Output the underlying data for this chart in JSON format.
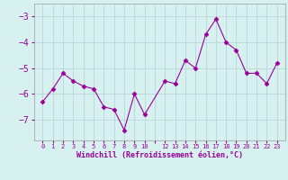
{
  "x": [
    0,
    1,
    2,
    3,
    4,
    5,
    6,
    7,
    8,
    9,
    10,
    12,
    13,
    14,
    15,
    16,
    17,
    18,
    19,
    20,
    21,
    22,
    23
  ],
  "y": [
    -6.3,
    -5.8,
    -5.2,
    -5.5,
    -5.7,
    -5.8,
    -6.5,
    -6.6,
    -7.4,
    -6.0,
    -6.8,
    -5.5,
    -5.6,
    -4.7,
    -5.0,
    -3.7,
    -3.1,
    -4.0,
    -4.3,
    -5.2,
    -5.2,
    -5.6,
    -4.8
  ],
  "line_color": "#990099",
  "marker": "D",
  "marker_size": 2.5,
  "bg_color": "#d7f0f0",
  "grid_color": "#b8d8d8",
  "xlabel": "Windchill (Refroidissement éolien,°C)",
  "xlabel_color": "#990099",
  "tick_color": "#990099",
  "ylim": [
    -7.8,
    -2.5
  ],
  "yticks": [
    -7,
    -6,
    -5,
    -4,
    -3
  ],
  "xtick_labels": [
    "0",
    "1",
    "2",
    "3",
    "4",
    "5",
    "6",
    "7",
    "8",
    "9",
    "10",
    "",
    "12",
    "13",
    "14",
    "15",
    "16",
    "17",
    "18",
    "19",
    "20",
    "21",
    "22",
    "23"
  ],
  "title": ""
}
